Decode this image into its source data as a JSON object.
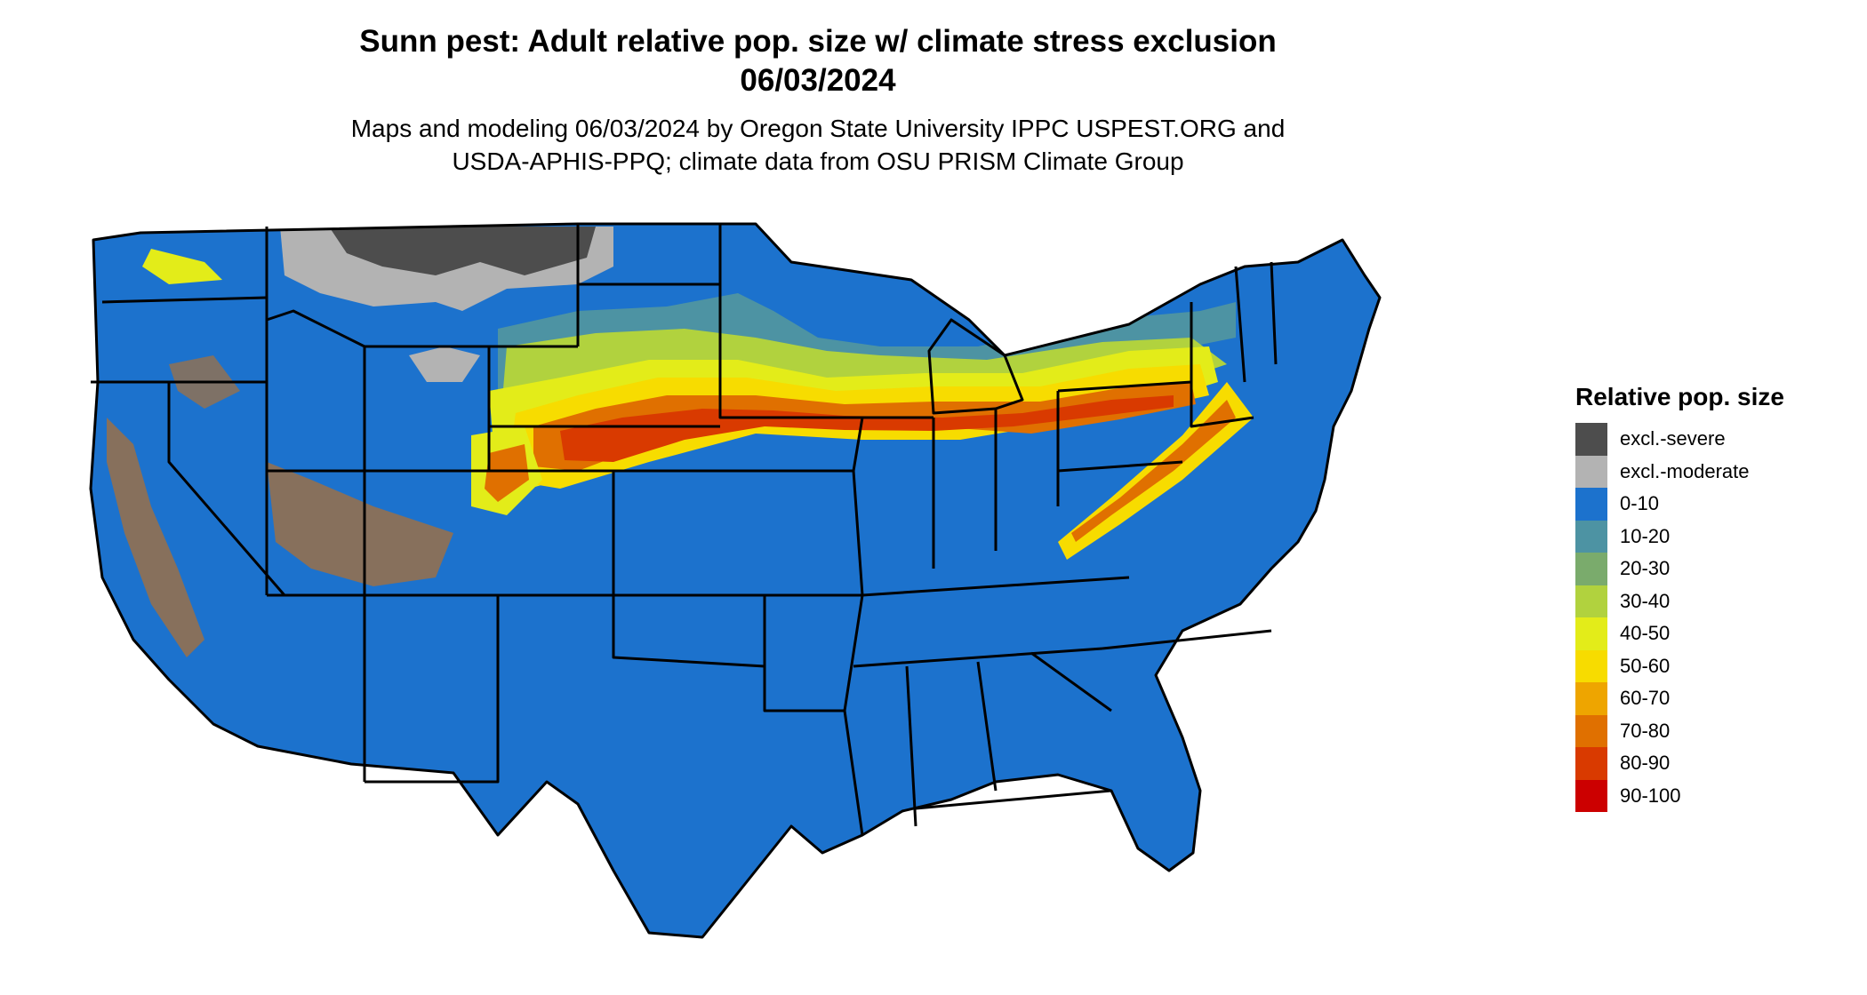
{
  "title": {
    "line1": "Sunn pest: Adult relative pop. size w/ climate stress exclusion",
    "line2": "06/03/2024"
  },
  "subtitle": {
    "line1": "Maps and modeling 06/03/2024 by Oregon State University IPPC USPEST.ORG and",
    "line2": "USDA-APHIS-PPQ; climate data from OSU PRISM Climate Group"
  },
  "legend": {
    "title": "Relative pop. size",
    "items": [
      {
        "label": "excl.-severe",
        "color": "#4d4d4d"
      },
      {
        "label": "excl.-moderate",
        "color": "#b3b3b3"
      },
      {
        "label": "0-10",
        "color": "#1c72cd"
      },
      {
        "label": "10-20",
        "color": "#4d93a3"
      },
      {
        "label": "20-30",
        "color": "#7aab6c"
      },
      {
        "label": "30-40",
        "color": "#b1d23e"
      },
      {
        "label": "40-50",
        "color": "#e3ec19"
      },
      {
        "label": "50-60",
        "color": "#f7dc00"
      },
      {
        "label": "60-70",
        "color": "#eea500"
      },
      {
        "label": "70-80",
        "color": "#e07000"
      },
      {
        "label": "80-90",
        "color": "#d93a00"
      },
      {
        "label": "90-100",
        "color": "#cc0000"
      }
    ]
  },
  "map": {
    "region": "conterminous United States",
    "base_color": "#1c72cd",
    "border_color": "#000000"
  }
}
